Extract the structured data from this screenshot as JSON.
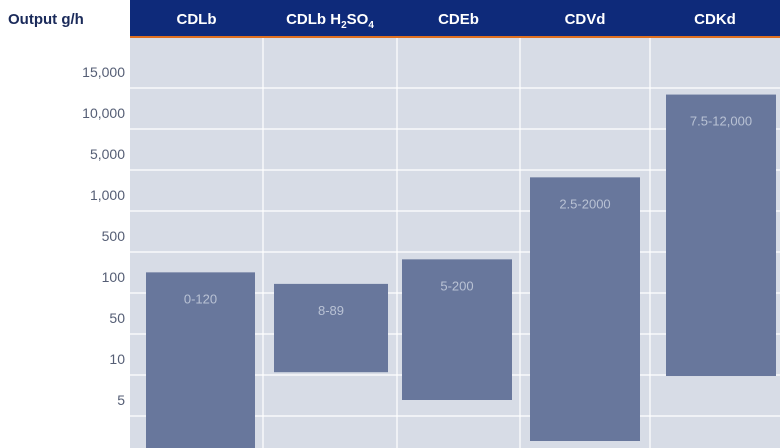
{
  "chart_data": {
    "type": "bar",
    "ylabel": "Output g/h",
    "categories": [
      {
        "label": "CDLb"
      },
      {
        "label": "CDLb H",
        "sub1": "2",
        "mid": "SO",
        "sub2": "4"
      },
      {
        "label": "CDEb"
      },
      {
        "label": "CDVd"
      },
      {
        "label": "CDKd"
      }
    ],
    "yticks": [
      "15,000",
      "10,000",
      "5,000",
      "1,000",
      "500",
      "100",
      "50",
      "10",
      "5"
    ],
    "ranges": [
      {
        "low": 0,
        "high": 120,
        "label": "0-120"
      },
      {
        "low": 8,
        "high": 89,
        "label": "8-89"
      },
      {
        "low": 5,
        "high": 200,
        "label": "5-200"
      },
      {
        "low": 2.5,
        "high": 2000,
        "label": "2.5-2000"
      },
      {
        "low": 7.5,
        "high": 12000,
        "label": "7.5-12,000"
      }
    ],
    "grid": true,
    "colors": {
      "header": "#0e2a7a",
      "accent_line": "#e07020",
      "plot_bg": "#d7dce6",
      "bar": "#68779c",
      "grid": "#ffffff"
    }
  }
}
